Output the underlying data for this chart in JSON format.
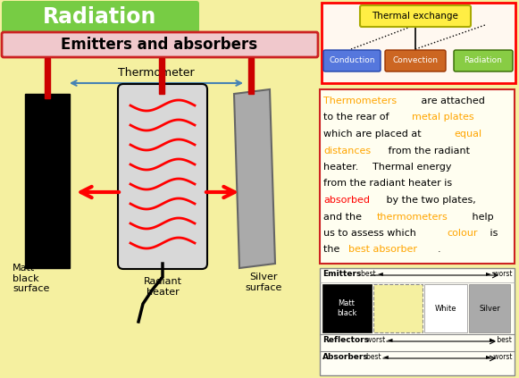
{
  "bg_color": "#f5f0a0",
  "title_text": "Radiation",
  "title_bg": "#77cc44",
  "subtitle_text": "Emitters and absorbers",
  "subtitle_bg": "#f0c8cc",
  "thermometer_label": "Thermometer",
  "matt_label": "Matt\nblack\nsurface",
  "radiant_label": "Radiant\nheater",
  "silver_label": "Silver\nsurface",
  "thermal_exchange_text": "Thermal exchange",
  "thermal_exchange_bg": "#ffee44",
  "conduction_text": "Conduction",
  "conduction_bg": "#5577dd",
  "convection_text": "Convection",
  "convection_bg": "#cc6622",
  "radiation_text": "Radiation",
  "radiation_bg": "#88cc44",
  "desc_lines": [
    [
      [
        "Thermometers",
        "orange"
      ],
      [
        " are attached",
        "black"
      ]
    ],
    [
      [
        "to the rear of ",
        "black"
      ],
      [
        "metal plates",
        "orange"
      ]
    ],
    [
      [
        "which are placed at ",
        "black"
      ],
      [
        "equal",
        "orange"
      ]
    ],
    [
      [
        "distances",
        "orange"
      ],
      [
        " from the radiant",
        "black"
      ]
    ],
    [
      [
        "heater. ",
        "black"
      ],
      [
        "Thermal energy",
        "black"
      ]
    ],
    [
      [
        "from the radiant heater is",
        "black"
      ]
    ],
    [
      [
        "absorbed",
        "red"
      ],
      [
        " by the two plates,",
        "black"
      ]
    ],
    [
      [
        "and the ",
        "black"
      ],
      [
        "thermometers",
        "orange"
      ],
      [
        " help",
        "black"
      ]
    ],
    [
      [
        "us to assess which ",
        "black"
      ],
      [
        "colour",
        "orange"
      ],
      [
        " is",
        "black"
      ]
    ],
    [
      [
        "the ",
        "black"
      ],
      [
        "best absorber",
        "orange"
      ],
      [
        ".",
        "black"
      ]
    ]
  ]
}
